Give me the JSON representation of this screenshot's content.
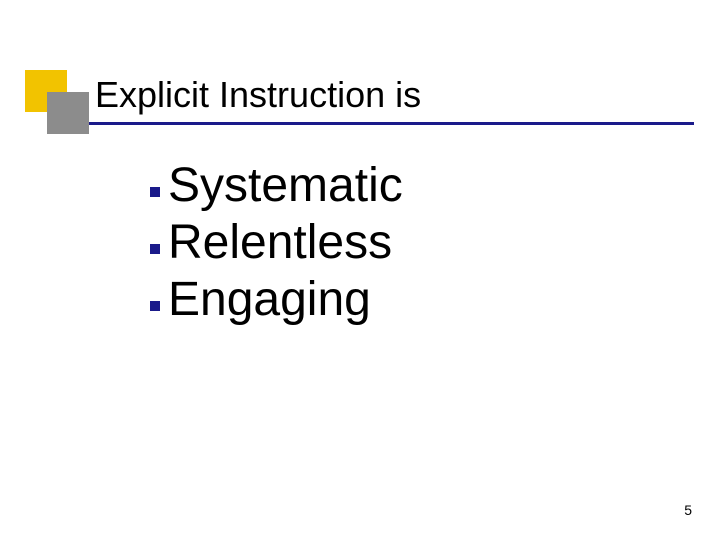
{
  "slide": {
    "title": "Explicit Instruction is",
    "bullets": [
      "Systematic",
      "Relentless",
      "Engaging"
    ],
    "page_number": "5"
  },
  "style": {
    "title_fontsize": 36,
    "bullet_fontsize": 48,
    "pagenum_fontsize": 14,
    "accent_yellow": "#f2c300",
    "accent_grey": "#8c8c8c",
    "accent_blue": "#1a1a8a",
    "text_color": "#000000",
    "background_color": "#ffffff",
    "underline_width": 605,
    "underline_height": 3,
    "yellow_box_size": 42,
    "grey_box_size": 42,
    "bullet_size": 10
  }
}
